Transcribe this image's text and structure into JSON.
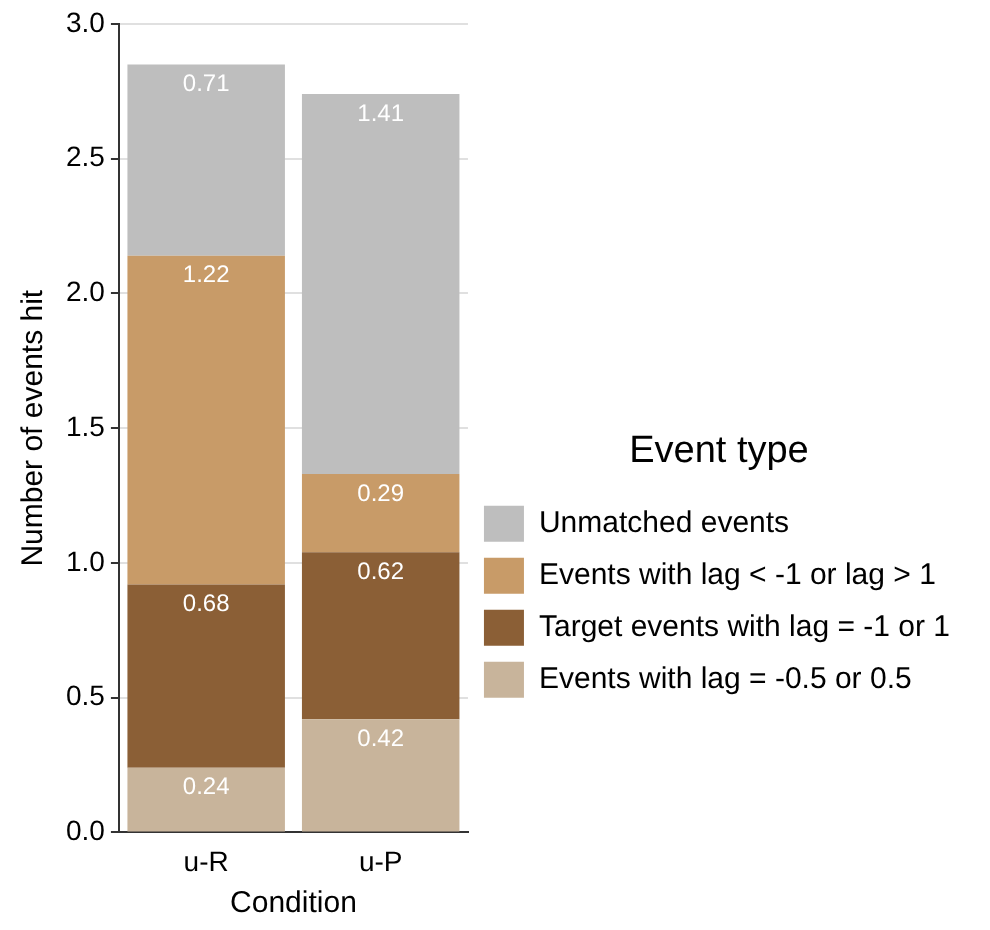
{
  "chart_data": {
    "type": "bar",
    "stacked": true,
    "xlabel": "Condition",
    "ylabel": "Number of events hit",
    "legend_title": "Event type",
    "categories": [
      "u-R",
      "u-P"
    ],
    "series": [
      {
        "name": "Events with lag = -0.5 or 0.5",
        "color": "#c8b49b",
        "values": [
          0.24,
          0.42
        ]
      },
      {
        "name": "Target events with lag = -1 or 1",
        "color": "#8b5f36",
        "values": [
          0.68,
          0.62
        ]
      },
      {
        "name": "Events with lag < -1 or lag > 1",
        "color": "#c89b68",
        "values": [
          1.22,
          0.29
        ]
      },
      {
        "name": "Unmatched events",
        "color": "#bebebe",
        "values": [
          0.71,
          1.41
        ]
      }
    ],
    "ylim": [
      0,
      3
    ],
    "yticks": [
      {
        "value": 0,
        "label": "0.0"
      },
      {
        "value": 0.5,
        "label": "0.5"
      },
      {
        "value": 1,
        "label": "1.0"
      },
      {
        "value": 1.5,
        "label": "1.5"
      },
      {
        "value": 2,
        "label": "2.0"
      },
      {
        "value": 2.5,
        "label": "2.5"
      },
      {
        "value": 3,
        "label": "3.0"
      }
    ],
    "grid": "y",
    "legend": "right",
    "data_labels": true
  }
}
